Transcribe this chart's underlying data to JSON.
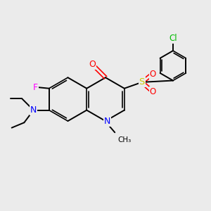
{
  "background_color": "#ebebeb",
  "bond_color": "#000000",
  "atom_colors": {
    "O": "#ff0000",
    "N": "#0000ff",
    "F": "#ff00ff",
    "S": "#cccc00",
    "Cl": "#00bb00",
    "C": "#000000"
  },
  "figsize": [
    3.0,
    3.0
  ],
  "dpi": 100
}
